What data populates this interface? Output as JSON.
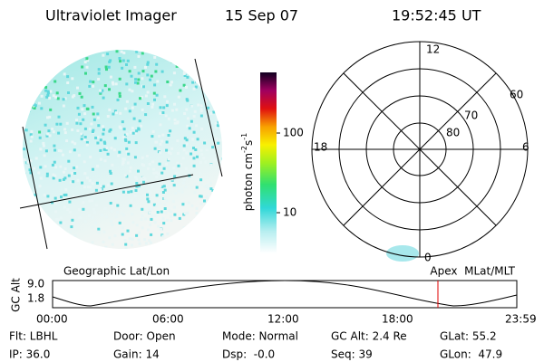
{
  "header": {
    "title": "Ultraviolet Imager",
    "date": "15 Sep 07",
    "time": "19:52:45 UT"
  },
  "colorbar": {
    "unit": {
      "base": "photon cm",
      "exp1": "-2",
      "mid": "s",
      "exp2": "-1"
    },
    "ticks": [
      "100",
      "10"
    ]
  },
  "polar": {
    "mlt_labels": {
      "top": "12",
      "left": "18",
      "right": "6",
      "bottom": "0"
    },
    "lat_labels": [
      "60",
      "70",
      "80"
    ]
  },
  "orbit": {
    "left_label": "Geographic Lat/Lon",
    "right_label": "Apex  MLat/MLT",
    "axis_label": "GC Alt",
    "yticks": [
      "9.0",
      "1.8"
    ],
    "xticks": [
      "00:00",
      "06:00",
      "12:00",
      "18:00",
      "23:59"
    ]
  },
  "info": {
    "rows": [
      [
        "Flt: LBHL",
        "Door: Open",
        "Mode: Normal",
        "GC Alt: 2.4 Re",
        "GLat: 55.2"
      ],
      [
        "IP: 36.0",
        "Gain: 14",
        "Dsp:  -0.0",
        "Seq: 39",
        "GLon:  47.9"
      ]
    ]
  }
}
